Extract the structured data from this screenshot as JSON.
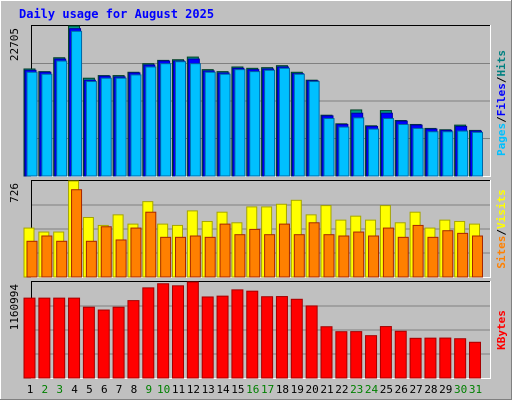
{
  "chart_data": {
    "type": "bar",
    "title": "Daily usage for August 2025",
    "categories": [
      "1",
      "2",
      "3",
      "4",
      "5",
      "6",
      "7",
      "8",
      "9",
      "10",
      "11",
      "12",
      "13",
      "14",
      "15",
      "16",
      "17",
      "18",
      "19",
      "20",
      "21",
      "22",
      "23",
      "24",
      "25",
      "26",
      "27",
      "28",
      "29",
      "30",
      "31"
    ],
    "weekend_days": [
      2,
      3,
      9,
      10,
      16,
      17,
      23,
      24,
      30,
      31
    ],
    "panels": [
      {
        "name": "hits-files-pages",
        "ylabel_parts": [
          "Pages",
          "/",
          "Files",
          "/",
          "Hits"
        ],
        "ylabel_colors": [
          "#00c0ff",
          "#000000",
          "#0000ff",
          "#000000",
          "#008080"
        ],
        "ymax_label": "22705",
        "ylim": [
          0,
          22705
        ],
        "series": [
          {
            "name": "Hits",
            "color": "#009a80",
            "values": [
              16200,
              15800,
              17900,
              22705,
              14800,
              15200,
              15200,
              15700,
              17000,
              17500,
              17600,
              18000,
              16100,
              15800,
              16500,
              16300,
              16400,
              16700,
              15700,
              14500,
              9200,
              7900,
              10000,
              7600,
              9900,
              8400,
              7800,
              7200,
              7000,
              7700,
              6900
            ]
          },
          {
            "name": "Files",
            "color": "#0000ff",
            "values": [
              16000,
              15700,
              17700,
              22300,
              14500,
              15100,
              15000,
              15600,
              16800,
              17400,
              17400,
              17700,
              15900,
              15600,
              16300,
              16100,
              16200,
              16500,
              15500,
              14400,
              9100,
              7800,
              9500,
              7500,
              9500,
              8300,
              7700,
              7100,
              6900,
              7500,
              6800
            ]
          },
          {
            "name": "Pages",
            "color": "#00c0ff",
            "values": [
              15700,
              15400,
              17400,
              21900,
              14300,
              14800,
              14800,
              15300,
              16500,
              17000,
              17300,
              17000,
              15700,
              15400,
              16100,
              15800,
              16000,
              16300,
              15400,
              14300,
              8700,
              7400,
              8800,
              7100,
              8700,
              7800,
              7200,
              6700,
              6700,
              6800,
              6600
            ]
          }
        ]
      },
      {
        "name": "visits-sites",
        "ylabel_parts": [
          "Sites",
          "/",
          "Visits"
        ],
        "ylabel_colors": [
          "#ff8000",
          "#000000",
          "#ffff00"
        ],
        "ymax_label": "726",
        "ylim": [
          0,
          726
        ],
        "series": [
          {
            "name": "Visits",
            "color": "#ffff00",
            "values": [
              370,
              340,
              340,
              726,
              450,
              390,
              470,
              400,
              570,
              400,
              390,
              500,
              420,
              490,
              410,
              530,
              530,
              550,
              580,
              470,
              540,
              430,
              460,
              430,
              540,
              410,
              490,
              370,
              430,
              420,
              400
            ]
          },
          {
            "name": "Sites",
            "color": "#ff8000",
            "values": [
              270,
              310,
              270,
              660,
              270,
              380,
              280,
              370,
              490,
              300,
              300,
              310,
              300,
              400,
              320,
              360,
              320,
              400,
              320,
              410,
              320,
              310,
              340,
              310,
              370,
              300,
              390,
              300,
              350,
              330,
              310
            ]
          }
        ]
      },
      {
        "name": "kbytes",
        "ylabel_parts": [
          "KBytes"
        ],
        "ylabel_colors": [
          "#ff0000"
        ],
        "ymax_label": "1160994",
        "ylim": [
          0,
          1160994
        ],
        "series": [
          {
            "name": "KBytes",
            "color": "#ff0000",
            "values": [
              966000,
              966000,
              966000,
              966000,
              856000,
              822000,
              856000,
              936000,
              1090000,
              1140000,
              1115000,
              1160994,
              980000,
              990000,
              1066000,
              1050000,
              983000,
              985000,
              952000,
              872000,
              620000,
              560000,
              561000,
              512000,
              622000,
              565000,
              480000,
              482000,
              483000,
              475000,
              432000
            ]
          }
        ]
      }
    ],
    "grid": true
  },
  "colors": {
    "background": "#c0c0c0",
    "title": "#0000ff",
    "day_weekday": "#000000",
    "day_weekend": "#008000"
  }
}
